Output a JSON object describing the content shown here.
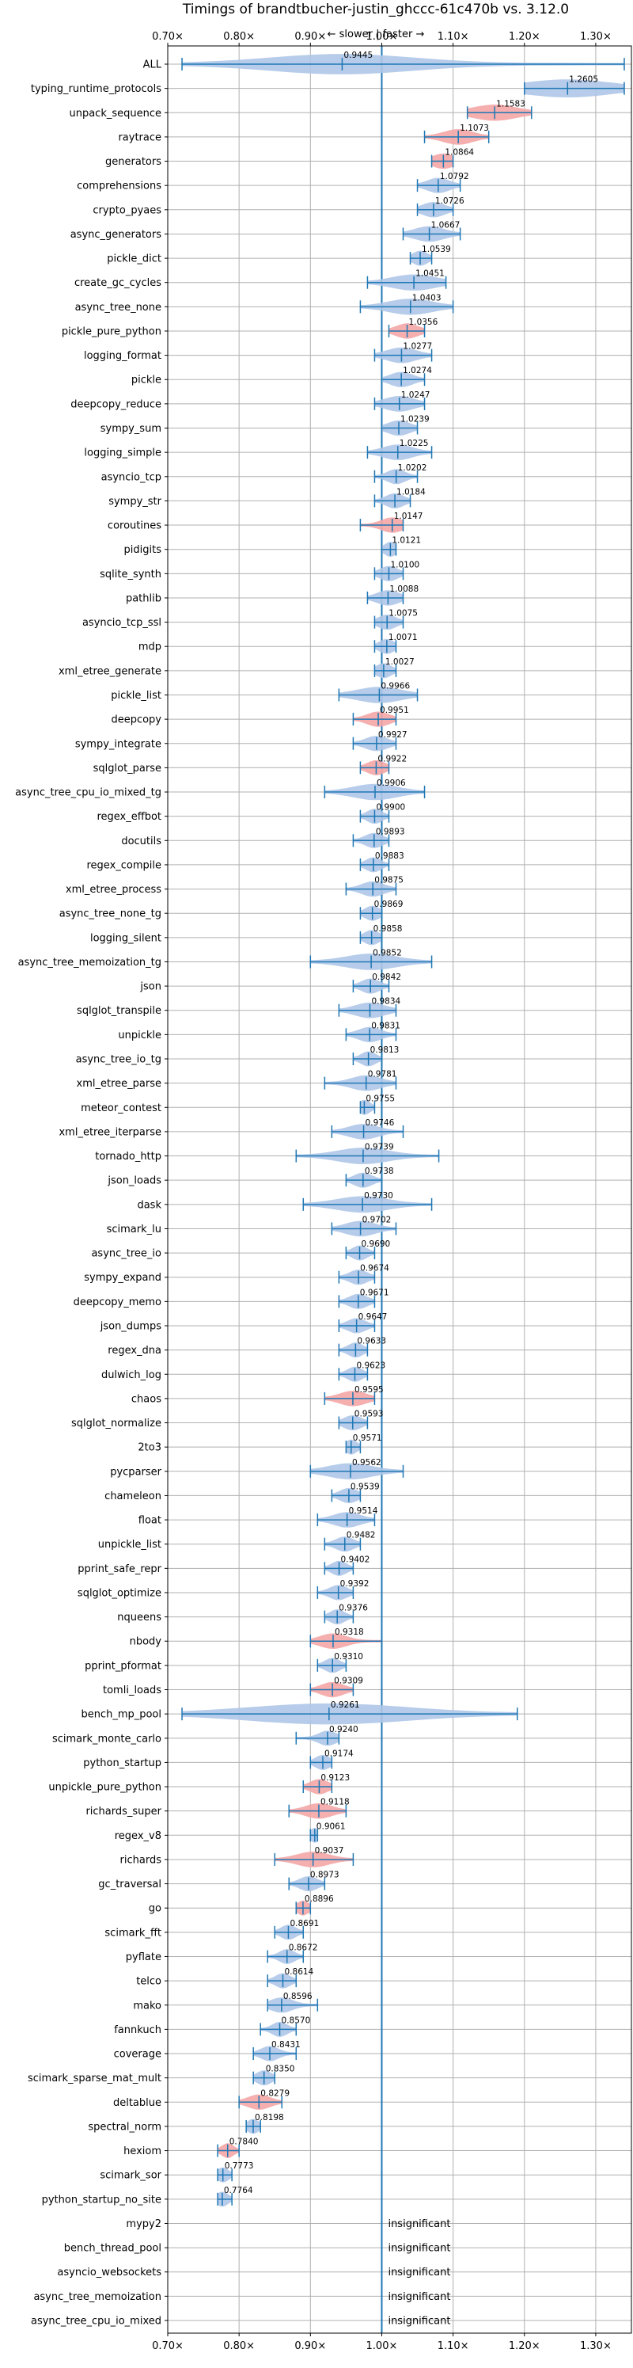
{
  "chart_data": {
    "type": "violin",
    "title": "Timings of brandtbucher-justin_ghccc-61c470b vs. 3.12.0",
    "subtitle": "← slower | faster →",
    "xlim": [
      0.7,
      1.35
    ],
    "reference_line": 1.0,
    "x_ticks": [
      {
        "value": 0.7,
        "label": "0.70×"
      },
      {
        "value": 0.8,
        "label": "0.80×"
      },
      {
        "value": 0.9,
        "label": "0.90×"
      },
      {
        "value": 1.0,
        "label": "1.00×"
      },
      {
        "value": 1.1,
        "label": "1.10×"
      },
      {
        "value": 1.2,
        "label": "1.20×"
      },
      {
        "value": 1.3,
        "label": "1.30×"
      }
    ],
    "grid": true,
    "colors": {
      "normal": "#aec7e8",
      "highlight": "#f4a6a6",
      "line": "#1f77b4",
      "refline": "#1f77b4"
    },
    "insignificant_label": "insignificant",
    "benchmarks": [
      {
        "name": "ALL",
        "value": 0.9445,
        "label": "0.9445",
        "lo": 0.72,
        "hi": 1.34,
        "w": 0.1,
        "hl": false
      },
      {
        "name": "typing_runtime_protocols",
        "value": 1.2605,
        "label": "1.2605",
        "lo": 1.2,
        "hi": 1.34,
        "w": 0.06,
        "hl": false
      },
      {
        "name": "unpack_sequence",
        "value": 1.1583,
        "label": "1.1583",
        "lo": 1.12,
        "hi": 1.21,
        "w": 0.03,
        "hl": true
      },
      {
        "name": "raytrace",
        "value": 1.1073,
        "label": "1.1073",
        "lo": 1.06,
        "hi": 1.15,
        "w": 0.02,
        "hl": true
      },
      {
        "name": "generators",
        "value": 1.0864,
        "label": "1.0864",
        "lo": 1.07,
        "hi": 1.1,
        "w": 0.015,
        "hl": true
      },
      {
        "name": "comprehensions",
        "value": 1.0792,
        "label": "1.0792",
        "lo": 1.05,
        "hi": 1.11,
        "w": 0.015,
        "hl": false
      },
      {
        "name": "crypto_pyaes",
        "value": 1.0726,
        "label": "1.0726",
        "lo": 1.05,
        "hi": 1.1,
        "w": 0.015,
        "hl": false
      },
      {
        "name": "async_generators",
        "value": 1.0667,
        "label": "1.0667",
        "lo": 1.03,
        "hi": 1.11,
        "w": 0.02,
        "hl": false
      },
      {
        "name": "pickle_dict",
        "value": 1.0539,
        "label": "1.0539",
        "lo": 1.04,
        "hi": 1.07,
        "w": 0.01,
        "hl": false
      },
      {
        "name": "create_gc_cycles",
        "value": 1.0451,
        "label": "1.0451",
        "lo": 0.98,
        "hi": 1.09,
        "w": 0.03,
        "hl": false
      },
      {
        "name": "async_tree_none",
        "value": 1.0403,
        "label": "1.0403",
        "lo": 0.97,
        "hi": 1.1,
        "w": 0.03,
        "hl": false
      },
      {
        "name": "pickle_pure_python",
        "value": 1.0356,
        "label": "1.0356",
        "lo": 1.01,
        "hi": 1.06,
        "w": 0.015,
        "hl": true
      },
      {
        "name": "logging_format",
        "value": 1.0277,
        "label": "1.0277",
        "lo": 0.99,
        "hi": 1.07,
        "w": 0.02,
        "hl": false
      },
      {
        "name": "pickle",
        "value": 1.0274,
        "label": "1.0274",
        "lo": 1.0,
        "hi": 1.06,
        "w": 0.015,
        "hl": false
      },
      {
        "name": "deepcopy_reduce",
        "value": 1.0247,
        "label": "1.0247",
        "lo": 0.99,
        "hi": 1.06,
        "w": 0.02,
        "hl": false
      },
      {
        "name": "sympy_sum",
        "value": 1.0239,
        "label": "1.0239",
        "lo": 1.0,
        "hi": 1.05,
        "w": 0.015,
        "hl": false
      },
      {
        "name": "logging_simple",
        "value": 1.0225,
        "label": "1.0225",
        "lo": 0.98,
        "hi": 1.07,
        "w": 0.02,
        "hl": false
      },
      {
        "name": "asyncio_tcp",
        "value": 1.0202,
        "label": "1.0202",
        "lo": 0.99,
        "hi": 1.05,
        "w": 0.012,
        "hl": false
      },
      {
        "name": "sympy_str",
        "value": 1.0184,
        "label": "1.0184",
        "lo": 0.99,
        "hi": 1.04,
        "w": 0.012,
        "hl": false
      },
      {
        "name": "coroutines",
        "value": 1.0147,
        "label": "1.0147",
        "lo": 0.97,
        "hi": 1.03,
        "w": 0.015,
        "hl": true
      },
      {
        "name": "pidigits",
        "value": 1.0121,
        "label": "1.0121",
        "lo": 1.0,
        "hi": 1.02,
        "w": 0.008,
        "hl": false
      },
      {
        "name": "sqlite_synth",
        "value": 1.01,
        "label": "1.0100",
        "lo": 0.99,
        "hi": 1.03,
        "w": 0.012,
        "hl": false
      },
      {
        "name": "pathlib",
        "value": 1.0088,
        "label": "1.0088",
        "lo": 0.98,
        "hi": 1.03,
        "w": 0.015,
        "hl": false
      },
      {
        "name": "asyncio_tcp_ssl",
        "value": 1.0075,
        "label": "1.0075",
        "lo": 0.99,
        "hi": 1.03,
        "w": 0.012,
        "hl": false
      },
      {
        "name": "mdp",
        "value": 1.0071,
        "label": "1.0071",
        "lo": 0.99,
        "hi": 1.02,
        "w": 0.01,
        "hl": false
      },
      {
        "name": "xml_etree_generate",
        "value": 1.0027,
        "label": "1.0027",
        "lo": 0.99,
        "hi": 1.02,
        "w": 0.01,
        "hl": false
      },
      {
        "name": "pickle_list",
        "value": 0.9966,
        "label": "0.9966",
        "lo": 0.94,
        "hi": 1.05,
        "w": 0.03,
        "hl": false
      },
      {
        "name": "deepcopy",
        "value": 0.9951,
        "label": "0.9951",
        "lo": 0.96,
        "hi": 1.02,
        "w": 0.015,
        "hl": true
      },
      {
        "name": "sympy_integrate",
        "value": 0.9927,
        "label": "0.9927",
        "lo": 0.96,
        "hi": 1.02,
        "w": 0.015,
        "hl": false
      },
      {
        "name": "sqlglot_parse",
        "value": 0.9922,
        "label": "0.9922",
        "lo": 0.97,
        "hi": 1.01,
        "w": 0.012,
        "hl": true
      },
      {
        "name": "async_tree_cpu_io_mixed_tg",
        "value": 0.9906,
        "label": "0.9906",
        "lo": 0.92,
        "hi": 1.06,
        "w": 0.03,
        "hl": false
      },
      {
        "name": "regex_effbot",
        "value": 0.99,
        "label": "0.9900",
        "lo": 0.97,
        "hi": 1.01,
        "w": 0.01,
        "hl": false
      },
      {
        "name": "docutils",
        "value": 0.9893,
        "label": "0.9893",
        "lo": 0.96,
        "hi": 1.01,
        "w": 0.012,
        "hl": false
      },
      {
        "name": "regex_compile",
        "value": 0.9883,
        "label": "0.9883",
        "lo": 0.97,
        "hi": 1.01,
        "w": 0.01,
        "hl": false
      },
      {
        "name": "xml_etree_process",
        "value": 0.9875,
        "label": "0.9875",
        "lo": 0.95,
        "hi": 1.02,
        "w": 0.015,
        "hl": false
      },
      {
        "name": "async_tree_none_tg",
        "value": 0.9869,
        "label": "0.9869",
        "lo": 0.97,
        "hi": 1.0,
        "w": 0.01,
        "hl": false
      },
      {
        "name": "logging_silent",
        "value": 0.9858,
        "label": "0.9858",
        "lo": 0.97,
        "hi": 1.0,
        "w": 0.01,
        "hl": false
      },
      {
        "name": "async_tree_memoization_tg",
        "value": 0.9852,
        "label": "0.9852",
        "lo": 0.9,
        "hi": 1.07,
        "w": 0.035,
        "hl": false
      },
      {
        "name": "json",
        "value": 0.9842,
        "label": "0.9842",
        "lo": 0.96,
        "hi": 1.01,
        "w": 0.012,
        "hl": false
      },
      {
        "name": "sqlglot_transpile",
        "value": 0.9834,
        "label": "0.9834",
        "lo": 0.94,
        "hi": 1.02,
        "w": 0.02,
        "hl": false
      },
      {
        "name": "unpickle",
        "value": 0.9831,
        "label": "0.9831",
        "lo": 0.95,
        "hi": 1.02,
        "w": 0.015,
        "hl": false
      },
      {
        "name": "async_tree_io_tg",
        "value": 0.9813,
        "label": "0.9813",
        "lo": 0.96,
        "hi": 1.0,
        "w": 0.01,
        "hl": false
      },
      {
        "name": "xml_etree_parse",
        "value": 0.9781,
        "label": "0.9781",
        "lo": 0.92,
        "hi": 1.02,
        "w": 0.02,
        "hl": false
      },
      {
        "name": "meteor_contest",
        "value": 0.9755,
        "label": "0.9755",
        "lo": 0.97,
        "hi": 0.99,
        "w": 0.008,
        "hl": false
      },
      {
        "name": "xml_etree_iterparse",
        "value": 0.9746,
        "label": "0.9746",
        "lo": 0.93,
        "hi": 1.03,
        "w": 0.02,
        "hl": false
      },
      {
        "name": "tornado_http",
        "value": 0.9739,
        "label": "0.9739",
        "lo": 0.88,
        "hi": 1.08,
        "w": 0.035,
        "hl": false
      },
      {
        "name": "json_loads",
        "value": 0.9738,
        "label": "0.9738",
        "lo": 0.95,
        "hi": 1.0,
        "w": 0.012,
        "hl": false
      },
      {
        "name": "dask",
        "value": 0.973,
        "label": "0.9730",
        "lo": 0.89,
        "hi": 1.07,
        "w": 0.035,
        "hl": false
      },
      {
        "name": "scimark_lu",
        "value": 0.9702,
        "label": "0.9702",
        "lo": 0.93,
        "hi": 1.02,
        "w": 0.02,
        "hl": false
      },
      {
        "name": "async_tree_io",
        "value": 0.969,
        "label": "0.9690",
        "lo": 0.95,
        "hi": 0.99,
        "w": 0.01,
        "hl": false
      },
      {
        "name": "sympy_expand",
        "value": 0.9674,
        "label": "0.9674",
        "lo": 0.94,
        "hi": 0.99,
        "w": 0.012,
        "hl": false
      },
      {
        "name": "deepcopy_memo",
        "value": 0.9671,
        "label": "0.9671",
        "lo": 0.94,
        "hi": 0.99,
        "w": 0.012,
        "hl": false
      },
      {
        "name": "json_dumps",
        "value": 0.9647,
        "label": "0.9647",
        "lo": 0.94,
        "hi": 0.99,
        "w": 0.012,
        "hl": false
      },
      {
        "name": "regex_dna",
        "value": 0.9633,
        "label": "0.9633",
        "lo": 0.94,
        "hi": 0.98,
        "w": 0.01,
        "hl": false
      },
      {
        "name": "dulwich_log",
        "value": 0.9623,
        "label": "0.9623",
        "lo": 0.94,
        "hi": 0.98,
        "w": 0.01,
        "hl": false
      },
      {
        "name": "chaos",
        "value": 0.9595,
        "label": "0.9595",
        "lo": 0.92,
        "hi": 0.99,
        "w": 0.018,
        "hl": true
      },
      {
        "name": "sqlglot_normalize",
        "value": 0.9593,
        "label": "0.9593",
        "lo": 0.94,
        "hi": 0.98,
        "w": 0.012,
        "hl": false
      },
      {
        "name": "2to3",
        "value": 0.9571,
        "label": "0.9571",
        "lo": 0.95,
        "hi": 0.97,
        "w": 0.008,
        "hl": false
      },
      {
        "name": "pycparser",
        "value": 0.9562,
        "label": "0.9562",
        "lo": 0.9,
        "hi": 1.03,
        "w": 0.03,
        "hl": false
      },
      {
        "name": "chameleon",
        "value": 0.9539,
        "label": "0.9539",
        "lo": 0.93,
        "hi": 0.97,
        "w": 0.012,
        "hl": false
      },
      {
        "name": "float",
        "value": 0.9514,
        "label": "0.9514",
        "lo": 0.91,
        "hi": 0.99,
        "w": 0.018,
        "hl": false
      },
      {
        "name": "unpickle_list",
        "value": 0.9482,
        "label": "0.9482",
        "lo": 0.92,
        "hi": 0.97,
        "w": 0.012,
        "hl": false
      },
      {
        "name": "pprint_safe_repr",
        "value": 0.9402,
        "label": "0.9402",
        "lo": 0.92,
        "hi": 0.96,
        "w": 0.01,
        "hl": false
      },
      {
        "name": "sqlglot_optimize",
        "value": 0.9392,
        "label": "0.9392",
        "lo": 0.91,
        "hi": 0.96,
        "w": 0.012,
        "hl": false
      },
      {
        "name": "nqueens",
        "value": 0.9376,
        "label": "0.9376",
        "lo": 0.92,
        "hi": 0.96,
        "w": 0.01,
        "hl": false
      },
      {
        "name": "nbody",
        "value": 0.9318,
        "label": "0.9318",
        "lo": 0.9,
        "hi": 1.0,
        "w": 0.018,
        "hl": true
      },
      {
        "name": "pprint_pformat",
        "value": 0.931,
        "label": "0.9310",
        "lo": 0.91,
        "hi": 0.95,
        "w": 0.01,
        "hl": false
      },
      {
        "name": "tomli_loads",
        "value": 0.9309,
        "label": "0.9309",
        "lo": 0.9,
        "hi": 0.96,
        "w": 0.015,
        "hl": true
      },
      {
        "name": "bench_mp_pool",
        "value": 0.9261,
        "label": "0.9261",
        "lo": 0.72,
        "hi": 1.19,
        "w": 0.11,
        "hl": false
      },
      {
        "name": "scimark_monte_carlo",
        "value": 0.924,
        "label": "0.9240",
        "lo": 0.88,
        "hi": 0.94,
        "w": 0.012,
        "hl": false
      },
      {
        "name": "python_startup",
        "value": 0.9174,
        "label": "0.9174",
        "lo": 0.9,
        "hi": 0.93,
        "w": 0.01,
        "hl": false
      },
      {
        "name": "unpickle_pure_python",
        "value": 0.9123,
        "label": "0.9123",
        "lo": 0.89,
        "hi": 0.93,
        "w": 0.012,
        "hl": true
      },
      {
        "name": "richards_super",
        "value": 0.9118,
        "label": "0.9118",
        "lo": 0.87,
        "hi": 0.95,
        "w": 0.018,
        "hl": true
      },
      {
        "name": "regex_v8",
        "value": 0.9061,
        "label": "0.9061",
        "lo": 0.9,
        "hi": 0.91,
        "w": 0.006,
        "hl": false
      },
      {
        "name": "richards",
        "value": 0.9037,
        "label": "0.9037",
        "lo": 0.85,
        "hi": 0.96,
        "w": 0.022,
        "hl": true
      },
      {
        "name": "gc_traversal",
        "value": 0.8973,
        "label": "0.8973",
        "lo": 0.87,
        "hi": 0.92,
        "w": 0.012,
        "hl": false
      },
      {
        "name": "go",
        "value": 0.8896,
        "label": "0.8896",
        "lo": 0.88,
        "hi": 0.9,
        "w": 0.008,
        "hl": true
      },
      {
        "name": "scimark_fft",
        "value": 0.8691,
        "label": "0.8691",
        "lo": 0.85,
        "hi": 0.89,
        "w": 0.01,
        "hl": false
      },
      {
        "name": "pyflate",
        "value": 0.8672,
        "label": "0.8672",
        "lo": 0.84,
        "hi": 0.89,
        "w": 0.01,
        "hl": false
      },
      {
        "name": "telco",
        "value": 0.8614,
        "label": "0.8614",
        "lo": 0.84,
        "hi": 0.88,
        "w": 0.01,
        "hl": false
      },
      {
        "name": "mako",
        "value": 0.8596,
        "label": "0.8596",
        "lo": 0.84,
        "hi": 0.91,
        "w": 0.015,
        "hl": false
      },
      {
        "name": "fannkuch",
        "value": 0.857,
        "label": "0.8570",
        "lo": 0.83,
        "hi": 0.88,
        "w": 0.01,
        "hl": false
      },
      {
        "name": "coverage",
        "value": 0.8431,
        "label": "0.8431",
        "lo": 0.82,
        "hi": 0.88,
        "w": 0.012,
        "hl": false
      },
      {
        "name": "scimark_sparse_mat_mult",
        "value": 0.835,
        "label": "0.8350",
        "lo": 0.82,
        "hi": 0.85,
        "w": 0.01,
        "hl": false
      },
      {
        "name": "deltablue",
        "value": 0.8279,
        "label": "0.8279",
        "lo": 0.8,
        "hi": 0.86,
        "w": 0.015,
        "hl": true
      },
      {
        "name": "spectral_norm",
        "value": 0.8198,
        "label": "0.8198",
        "lo": 0.81,
        "hi": 0.83,
        "w": 0.008,
        "hl": false
      },
      {
        "name": "hexiom",
        "value": 0.784,
        "label": "0.7840",
        "lo": 0.77,
        "hi": 0.8,
        "w": 0.008,
        "hl": true
      },
      {
        "name": "scimark_sor",
        "value": 0.7773,
        "label": "0.7773",
        "lo": 0.77,
        "hi": 0.79,
        "w": 0.008,
        "hl": false
      },
      {
        "name": "python_startup_no_site",
        "value": 0.7764,
        "label": "0.7764",
        "lo": 0.77,
        "hi": 0.79,
        "w": 0.008,
        "hl": false
      },
      {
        "name": "mypy2",
        "value": null,
        "label": null,
        "insignificant": true
      },
      {
        "name": "bench_thread_pool",
        "value": null,
        "label": null,
        "insignificant": true
      },
      {
        "name": "asyncio_websockets",
        "value": null,
        "label": null,
        "insignificant": true
      },
      {
        "name": "async_tree_memoization",
        "value": null,
        "label": null,
        "insignificant": true
      },
      {
        "name": "async_tree_cpu_io_mixed",
        "value": null,
        "label": null,
        "insignificant": true
      }
    ]
  }
}
